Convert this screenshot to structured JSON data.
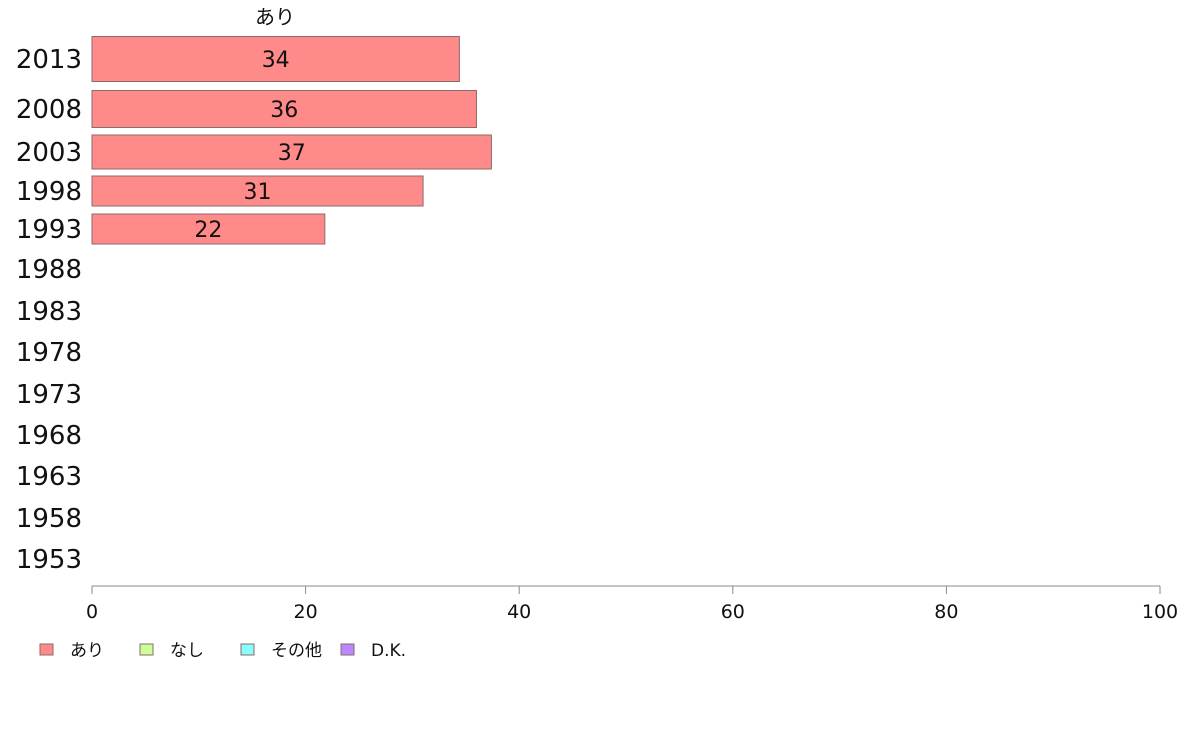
{
  "chart_data": {
    "type": "bar",
    "orientation": "horizontal",
    "stacked": true,
    "categories": [
      "2013",
      "2008",
      "2003",
      "1998",
      "1993",
      "1988",
      "1983",
      "1978",
      "1973",
      "1968",
      "1963",
      "1958",
      "1953"
    ],
    "series": [
      {
        "name": "あり",
        "color": "#ff8a8a",
        "values": [
          34.4,
          36.0,
          37.4,
          31.0,
          21.8,
          null,
          null,
          null,
          null,
          null,
          null,
          null,
          null
        ],
        "labels": [
          "34",
          "36",
          "37",
          "31",
          "22",
          "",
          "",
          "",
          "",
          "",
          "",
          "",
          ""
        ]
      },
      {
        "name": "なし",
        "color": "#ccff99",
        "values": [
          null,
          null,
          null,
          null,
          null,
          null,
          null,
          null,
          null,
          null,
          null,
          null,
          null
        ]
      },
      {
        "name": "その他",
        "color": "#88ffff",
        "values": [
          null,
          null,
          null,
          null,
          null,
          null,
          null,
          null,
          null,
          null,
          null,
          null,
          null
        ]
      },
      {
        "name": "D.K.",
        "color": "#bb88ff",
        "values": [
          null,
          null,
          null,
          null,
          null,
          null,
          null,
          null,
          null,
          null,
          null,
          null,
          null
        ]
      }
    ],
    "series_title": "あり",
    "xlim": [
      0,
      100
    ],
    "xticks": [
      "0",
      "20",
      "40",
      "60",
      "80",
      "100"
    ],
    "grid": false,
    "legend_position": "bottom-left"
  }
}
